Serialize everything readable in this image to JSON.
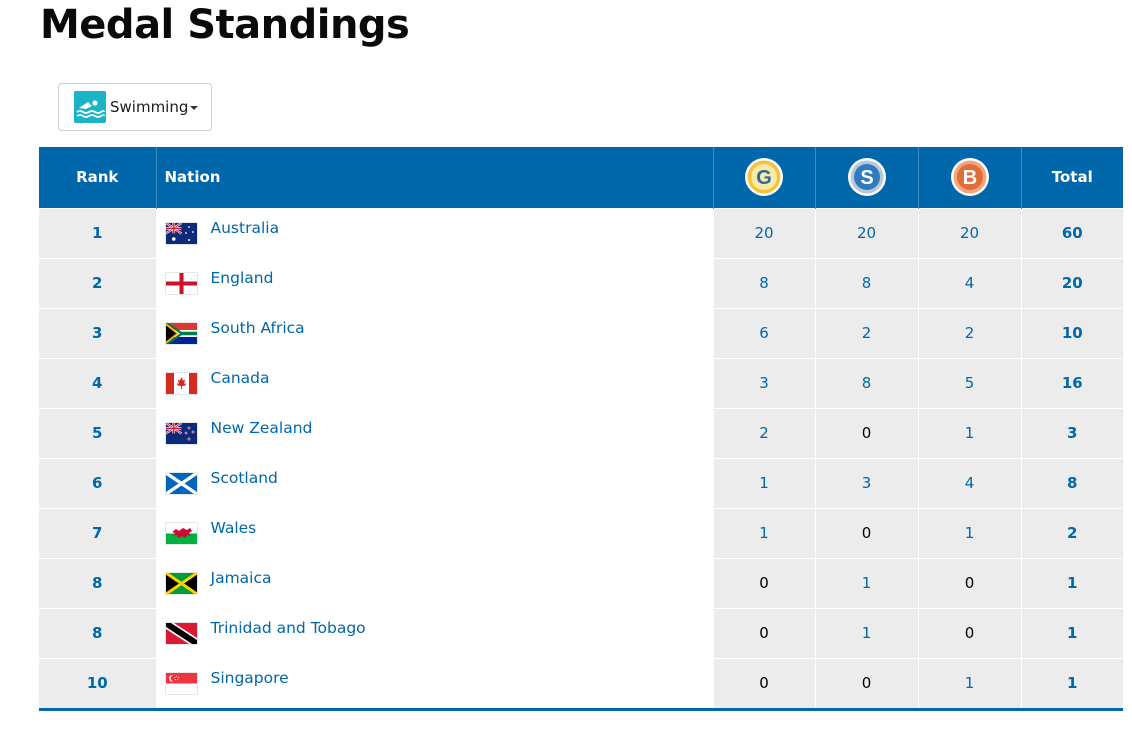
{
  "page": {
    "title": "Medal Standings"
  },
  "filter": {
    "label": "Swimming",
    "icon": "swimming-icon",
    "icon_color": "#1ab3c8"
  },
  "table": {
    "headers": {
      "rank": "Rank",
      "nation": "Nation",
      "gold": "G",
      "silver": "S",
      "bronze": "B",
      "total": "Total"
    },
    "colors": {
      "header_bg": "#0067ab",
      "row_bg": "#ececec",
      "link": "#0067ab",
      "gold": "#f3c43a",
      "silver": "#2f7bbf",
      "bronze": "#e06d3b"
    },
    "rows": [
      {
        "rank": "1",
        "nation": "Australia",
        "flag": "australia-flag",
        "gold": "20",
        "silver": "20",
        "bronze": "20",
        "total": "60"
      },
      {
        "rank": "2",
        "nation": "England",
        "flag": "england-flag",
        "gold": "8",
        "silver": "8",
        "bronze": "4",
        "total": "20"
      },
      {
        "rank": "3",
        "nation": "South Africa",
        "flag": "south-africa-flag",
        "gold": "6",
        "silver": "2",
        "bronze": "2",
        "total": "10"
      },
      {
        "rank": "4",
        "nation": "Canada",
        "flag": "canada-flag",
        "gold": "3",
        "silver": "8",
        "bronze": "5",
        "total": "16"
      },
      {
        "rank": "5",
        "nation": "New Zealand",
        "flag": "new-zealand-flag",
        "gold": "2",
        "silver": "0",
        "bronze": "1",
        "total": "3"
      },
      {
        "rank": "6",
        "nation": "Scotland",
        "flag": "scotland-flag",
        "gold": "1",
        "silver": "3",
        "bronze": "4",
        "total": "8"
      },
      {
        "rank": "7",
        "nation": "Wales",
        "flag": "wales-flag",
        "gold": "1",
        "silver": "0",
        "bronze": "1",
        "total": "2"
      },
      {
        "rank": "8",
        "nation": "Jamaica",
        "flag": "jamaica-flag",
        "gold": "0",
        "silver": "1",
        "bronze": "0",
        "total": "1"
      },
      {
        "rank": "8",
        "nation": "Trinidad and Tobago",
        "flag": "trinidad-and-tobago-flag",
        "gold": "0",
        "silver": "1",
        "bronze": "0",
        "total": "1"
      },
      {
        "rank": "10",
        "nation": "Singapore",
        "flag": "singapore-flag",
        "gold": "0",
        "silver": "0",
        "bronze": "1",
        "total": "1"
      }
    ]
  }
}
